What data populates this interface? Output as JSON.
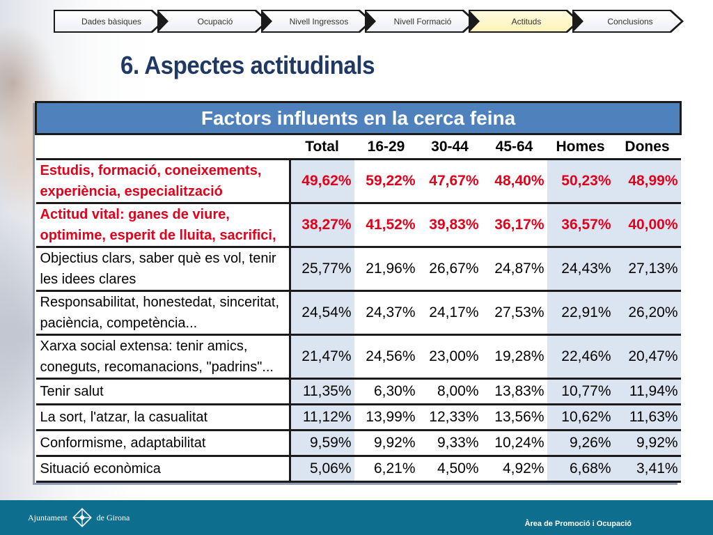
{
  "steps": [
    {
      "label": "Dades bàsiques",
      "active": false
    },
    {
      "label": "Ocupació",
      "active": false
    },
    {
      "label": "Nivell Ingressos",
      "active": false
    },
    {
      "label": "Nivell Formació",
      "active": false
    },
    {
      "label": "Actituds",
      "active": true
    },
    {
      "label": "Conclusions",
      "active": false
    }
  ],
  "page_title": "6. Aspectes actitudinals",
  "table": {
    "title": "Factors influents en la cerca feina",
    "columns": [
      "Total",
      "16-29",
      "30-44",
      "45-64",
      "Homes",
      "Dones"
    ],
    "rows": [
      {
        "factor_line1": "Estudis, formació, coneixements,",
        "factor_line2": "experiència, especialització",
        "values": [
          "49,62%",
          "59,22%",
          "47,67%",
          "48,40%",
          "50,23%",
          "48,99%"
        ],
        "highlight": true
      },
      {
        "factor_line1": "Actitud vital: ganes de viure,",
        "factor_line2": "optimime, esperit de lluita, sacrifici,",
        "values": [
          "38,27%",
          "41,52%",
          "39,83%",
          "36,17%",
          "36,57%",
          "40,00%"
        ],
        "highlight": true
      },
      {
        "factor_line1": "Objectius clars, saber què es vol, tenir",
        "factor_line2": "les idees clares",
        "values": [
          "25,77%",
          "21,96%",
          "26,67%",
          "24,87%",
          "24,43%",
          "27,13%"
        ],
        "highlight": false
      },
      {
        "factor_line1": "Responsabilitat, honestedat, sinceritat,",
        "factor_line2": "paciència, competència...",
        "values": [
          "24,54%",
          "24,37%",
          "24,17%",
          "27,53%",
          "22,91%",
          "26,20%"
        ],
        "highlight": false
      },
      {
        "factor_line1": "Xarxa social extensa: tenir amics,",
        "factor_line2": "coneguts, recomanacions, \"padrins\"...",
        "values": [
          "21,47%",
          "24,56%",
          "23,00%",
          "19,28%",
          "22,46%",
          "20,47%"
        ],
        "highlight": false
      },
      {
        "factor_line1": "Tenir salut",
        "factor_line2": "",
        "values": [
          "11,35%",
          "6,30%",
          "8,00%",
          "13,83%",
          "10,77%",
          "11,94%"
        ],
        "highlight": false
      },
      {
        "factor_line1": "La sort, l'atzar, la casualitat",
        "factor_line2": "",
        "values": [
          "11,12%",
          "13,99%",
          "12,33%",
          "13,56%",
          "10,62%",
          "11,63%"
        ],
        "highlight": false
      },
      {
        "factor_line1": "Conformisme, adaptabilitat",
        "factor_line2": "",
        "values": [
          "9,59%",
          "9,92%",
          "9,33%",
          "10,24%",
          "9,26%",
          "9,92%"
        ],
        "highlight": false
      },
      {
        "factor_line1": "Situació econòmica",
        "factor_line2": "",
        "values": [
          "5,06%",
          "6,21%",
          "4,50%",
          "4,92%",
          "6,68%",
          "3,41%"
        ],
        "highlight": false
      }
    ]
  },
  "footer": {
    "logo_left": "Ajuntament",
    "logo_right": "de Girona",
    "area": "Àrea de Promoció i Ocupació"
  },
  "colors": {
    "title": "#1f3864",
    "table_header": "#4f81bd",
    "shade": "#dbe5f1",
    "highlight_text": "#e3001b",
    "footer": "#0e6e8e"
  }
}
